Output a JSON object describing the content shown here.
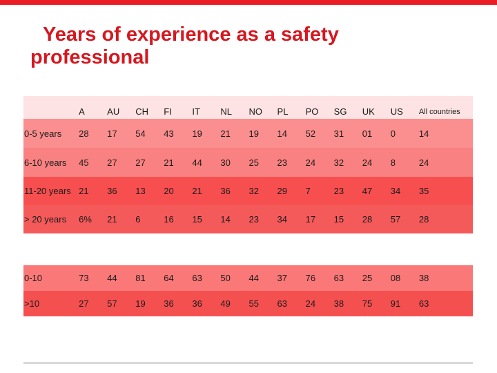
{
  "title": {
    "line1": "Years of experience as a safety",
    "line2": "professional"
  },
  "colors": {
    "accent": "#ea1d25",
    "header_row": "#fde3e3",
    "row_1": "#fb8e8e",
    "row_2": "#fa8181",
    "row_3": "#f74f4f",
    "row_4": "#f55a5a",
    "row_5": "#fb7878",
    "row_6": "#f55050"
  },
  "table1": {
    "headers": [
      "",
      "A",
      "AU",
      "CH",
      "FI",
      "IT",
      "NL",
      "NO",
      "PL",
      "PO",
      "SG",
      "UK",
      "US",
      "All countries"
    ],
    "rows": [
      {
        "label": "0-5 years",
        "values": [
          "28",
          "17",
          "54",
          "43",
          "19",
          "21",
          "19",
          "14",
          "52",
          "31",
          "01",
          "0",
          "14"
        ]
      },
      {
        "label": "6-10 years",
        "values": [
          "45",
          "27",
          "27",
          "21",
          "44",
          "30",
          "25",
          "23",
          "24",
          "32",
          "24",
          "8",
          "24"
        ]
      },
      {
        "label": "11-20 years",
        "values": [
          "21",
          "36",
          "13",
          "20",
          "21",
          "36",
          "32",
          "29",
          "7",
          "23",
          "47",
          "34",
          "35"
        ]
      },
      {
        "label": "> 20 years",
        "values": [
          "6%",
          "21",
          "6",
          "16",
          "15",
          "14",
          "23",
          "34",
          "17",
          "15",
          "28",
          "57",
          "28"
        ]
      }
    ]
  },
  "table2": {
    "rows": [
      {
        "label": "0-10",
        "values": [
          "73",
          "44",
          "81",
          "64",
          "63",
          "50",
          "44",
          "37",
          "76",
          "63",
          "25",
          "08",
          "38"
        ]
      },
      {
        "label": ">10",
        "values": [
          "27",
          "57",
          "19",
          "36",
          "36",
          "49",
          "55",
          "63",
          "24",
          "38",
          "75",
          "91",
          "63"
        ]
      }
    ]
  }
}
